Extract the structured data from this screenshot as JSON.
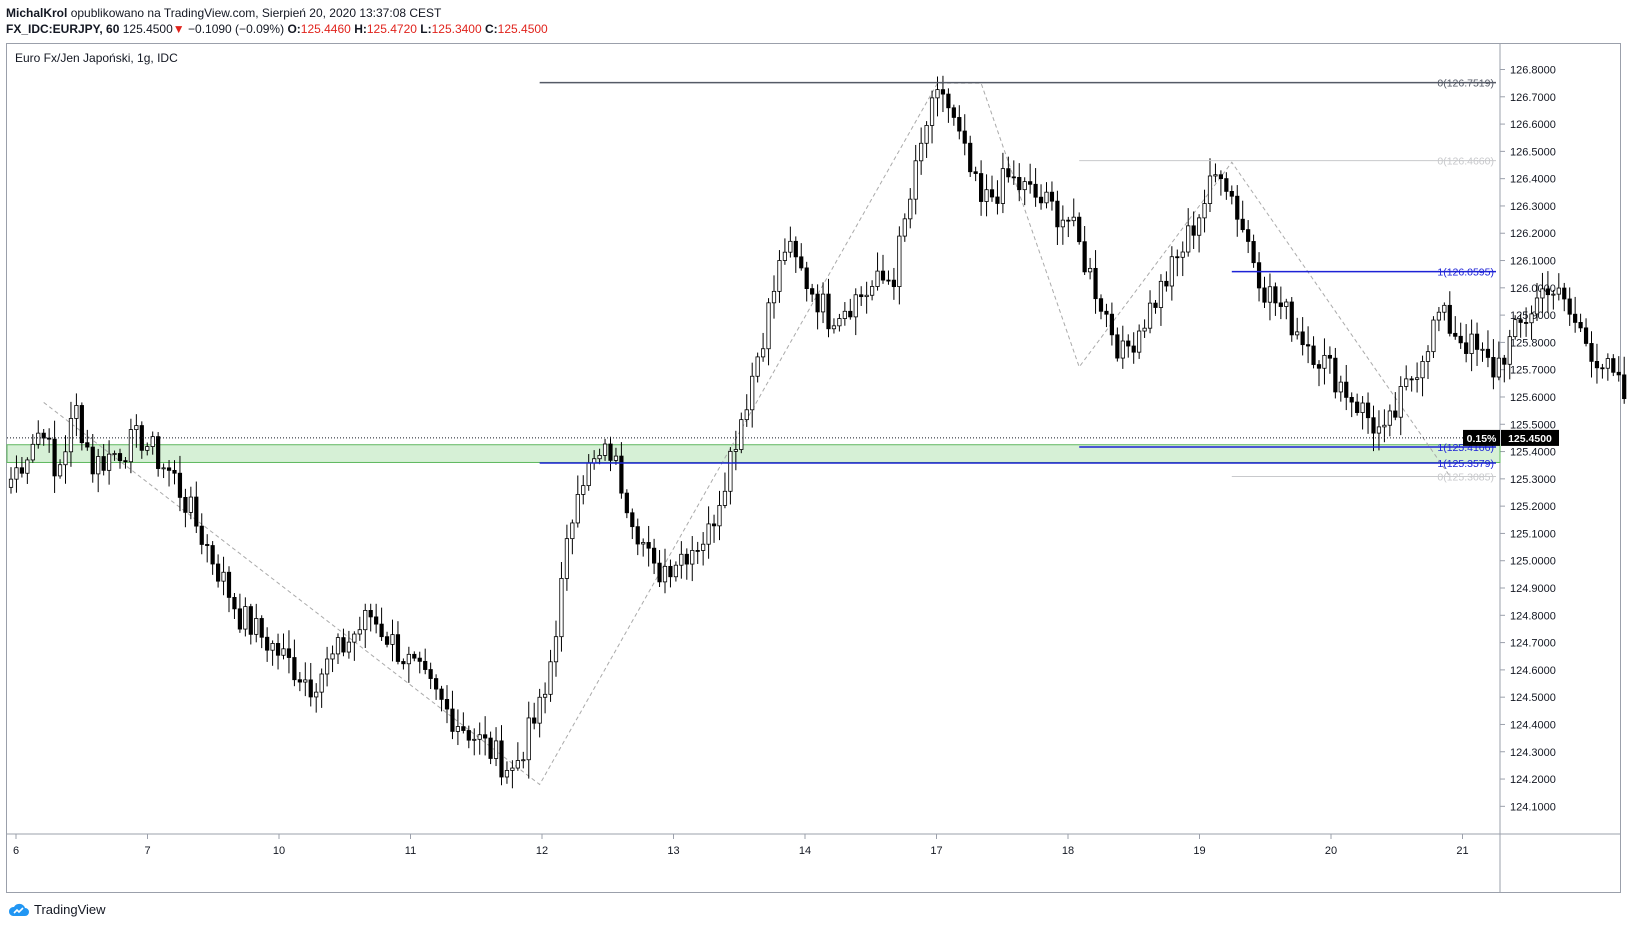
{
  "header": {
    "author": "MichalKrol",
    "published_text": "opublikowano na TradingView.com, Sierpień 20, 2020 13:37:08 CEST",
    "symbol": "FX_IDC:EURJPY, 60",
    "last": "125.4500",
    "change": "−0.1090 (−0.09%)",
    "o_label": "O:",
    "o": "125.4460",
    "h_label": "H:",
    "h": "125.4720",
    "l_label": "L:",
    "l": "125.3400",
    "c_label": "C:",
    "c": "125.4500"
  },
  "chart_title": "Euro Fx/Jen Japoński, 1g, IDC",
  "footer": {
    "brand": "TradingView"
  },
  "price_badge": {
    "pct": "0.15%",
    "price": "125.4500"
  },
  "colors": {
    "blue": "#1d22d6",
    "green_zone": "#d6f0d6",
    "green_border": "#5fb85f",
    "down_arrow": "#e0231c"
  },
  "chart_data": {
    "type": "candlestick",
    "yaxis": {
      "min": 124.05,
      "max": 126.85,
      "ticks": [
        "126.8000",
        "126.7000",
        "126.6000",
        "126.5000",
        "126.4000",
        "126.3000",
        "126.2000",
        "126.1000",
        "126.0000",
        "125.9000",
        "125.8000",
        "125.7000",
        "125.6000",
        "125.5000",
        "125.4000",
        "125.3000",
        "125.2000",
        "125.1000",
        "125.0000",
        "124.9000",
        "124.8000",
        "124.7000",
        "124.6000",
        "124.5000",
        "124.4000",
        "124.3000",
        "124.2000",
        "124.1000"
      ]
    },
    "xaxis": {
      "labels": [
        "6",
        "7",
        "10",
        "11",
        "12",
        "13",
        "14",
        "17",
        "18",
        "19",
        "20",
        "21"
      ],
      "bars_per_label": 24
    },
    "pivots": [
      {
        "i": 0,
        "p": 125.3
      },
      {
        "i": 6,
        "p": 125.5
      },
      {
        "i": 8,
        "p": 125.3
      },
      {
        "i": 12,
        "p": 125.55
      },
      {
        "i": 15,
        "p": 125.35
      },
      {
        "i": 24,
        "p": 125.45
      },
      {
        "i": 30,
        "p": 125.3
      },
      {
        "i": 42,
        "p": 124.8
      },
      {
        "i": 55,
        "p": 124.55
      },
      {
        "i": 66,
        "p": 124.8
      },
      {
        "i": 80,
        "p": 124.45
      },
      {
        "i": 92,
        "p": 124.23
      },
      {
        "i": 98,
        "p": 124.5
      },
      {
        "i": 104,
        "p": 125.3
      },
      {
        "i": 110,
        "p": 125.4
      },
      {
        "i": 118,
        "p": 124.95
      },
      {
        "i": 128,
        "p": 125.1
      },
      {
        "i": 135,
        "p": 125.6
      },
      {
        "i": 142,
        "p": 126.15
      },
      {
        "i": 150,
        "p": 125.9
      },
      {
        "i": 162,
        "p": 126.05
      },
      {
        "i": 168,
        "p": 126.6
      },
      {
        "i": 171,
        "p": 126.72
      },
      {
        "i": 178,
        "p": 126.3
      },
      {
        "i": 183,
        "p": 126.4
      },
      {
        "i": 194,
        "p": 126.25
      },
      {
        "i": 204,
        "p": 125.75
      },
      {
        "i": 214,
        "p": 126.1
      },
      {
        "i": 222,
        "p": 126.45
      },
      {
        "i": 230,
        "p": 126.0
      },
      {
        "i": 240,
        "p": 125.75
      },
      {
        "i": 252,
        "p": 125.45
      },
      {
        "i": 262,
        "p": 125.9
      },
      {
        "i": 272,
        "p": 125.7
      },
      {
        "i": 282,
        "p": 126.02
      },
      {
        "i": 296,
        "p": 125.6
      },
      {
        "i": 308,
        "p": 125.55
      },
      {
        "i": 318,
        "p": 125.45
      }
    ],
    "levels": [
      {
        "label": "0(126.7519)",
        "price": 126.7519,
        "start_bar": 97,
        "color": "#555a66",
        "width": 1.5
      },
      {
        "label": "0(126.4660)",
        "price": 126.466,
        "start_bar": 196,
        "color": "#c8c9cc",
        "width": 1
      },
      {
        "label": "1(126.0595)",
        "price": 126.0595,
        "start_bar": 224,
        "color": "#1d22d6",
        "width": 1.5
      },
      {
        "label": "1(125.4166)",
        "price": 125.4166,
        "start_bar": 196,
        "color": "#1d22d6",
        "width": 1.5
      },
      {
        "label": "1(125.3579)",
        "price": 125.3579,
        "start_bar": 97,
        "color": "#1d22d6",
        "width": 1.5
      },
      {
        "label": "0(125.3085)",
        "price": 125.3085,
        "start_bar": 224,
        "color": "#c8c9cc",
        "width": 1
      }
    ],
    "zone": {
      "low": 125.36,
      "high": 125.425
    },
    "zigzags": [
      [
        {
          "i": 6,
          "p": 125.58
        },
        {
          "i": 97,
          "p": 124.18
        },
        {
          "i": 170,
          "p": 126.75
        },
        {
          "i": 178,
          "p": 126.75
        },
        {
          "i": 196,
          "p": 125.71
        },
        {
          "i": 224,
          "p": 126.46
        },
        {
          "i": 264,
          "p": 125.31
        }
      ]
    ],
    "current_price": 125.45
  }
}
